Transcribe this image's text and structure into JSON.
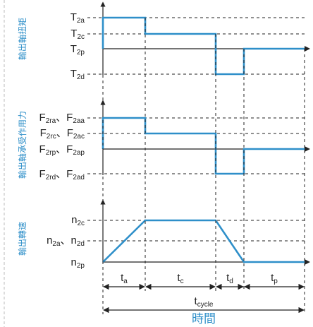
{
  "diagram": {
    "panels": [
      {
        "ylabel": "輸出軸扭矩",
        "levels": [
          {
            "parts": [
              [
                "T",
                ""
              ],
              [
                "2a",
                "sub"
              ]
            ]
          },
          {
            "parts": [
              [
                "T",
                ""
              ],
              [
                "2c",
                "sub"
              ]
            ]
          },
          {
            "parts": [
              [
                "T",
                ""
              ],
              [
                "2p",
                "sub"
              ]
            ]
          },
          {
            "parts": [
              [
                "T",
                ""
              ],
              [
                "2d",
                "sub"
              ]
            ]
          }
        ]
      },
      {
        "ylabel": "輸出軸承受作用力",
        "levels": [
          {
            "parts": [
              [
                "F",
                ""
              ],
              [
                "2ra",
                "sub"
              ],
              [
                "、F",
                ""
              ],
              [
                "2aa",
                "sub"
              ]
            ]
          },
          {
            "parts": [
              [
                "F",
                ""
              ],
              [
                "2rc",
                "sub"
              ],
              [
                "、F",
                ""
              ],
              [
                "2ac",
                "sub"
              ]
            ]
          },
          {
            "parts": [
              [
                "F",
                ""
              ],
              [
                "2rp",
                "sub"
              ],
              [
                "、F",
                ""
              ],
              [
                "2ap",
                "sub"
              ]
            ]
          },
          {
            "parts": [
              [
                "F",
                ""
              ],
              [
                "2rd",
                "sub"
              ],
              [
                "、F",
                ""
              ],
              [
                "2ad",
                "sub"
              ]
            ]
          }
        ]
      },
      {
        "ylabel": "輸出轉速",
        "levels": [
          {
            "parts": [
              [
                "n",
                ""
              ],
              [
                "2c",
                "sub"
              ]
            ]
          },
          {
            "parts": [
              [
                "n",
                ""
              ],
              [
                "2a",
                "sub"
              ],
              [
                "、n",
                ""
              ],
              [
                "2d",
                "sub"
              ]
            ]
          },
          {
            "parts": [
              [
                "n",
                ""
              ],
              [
                "2p",
                "sub"
              ]
            ]
          }
        ]
      }
    ],
    "segments": [
      {
        "parts": [
          [
            "t",
            ""
          ],
          [
            "a",
            "sub"
          ]
        ]
      },
      {
        "parts": [
          [
            "t",
            ""
          ],
          [
            "c",
            "sub"
          ]
        ]
      },
      {
        "parts": [
          [
            "t",
            ""
          ],
          [
            "d",
            "sub"
          ]
        ]
      },
      {
        "parts": [
          [
            "t",
            ""
          ],
          [
            "p",
            "sub"
          ]
        ]
      }
    ],
    "cycle": {
      "parts": [
        [
          "t",
          ""
        ],
        [
          "cycle",
          "sub"
        ]
      ]
    },
    "xtitle": "時間",
    "colors": {
      "signal": "#2e8fc9",
      "axis": "#222222",
      "label": "#2e8fc9"
    }
  }
}
